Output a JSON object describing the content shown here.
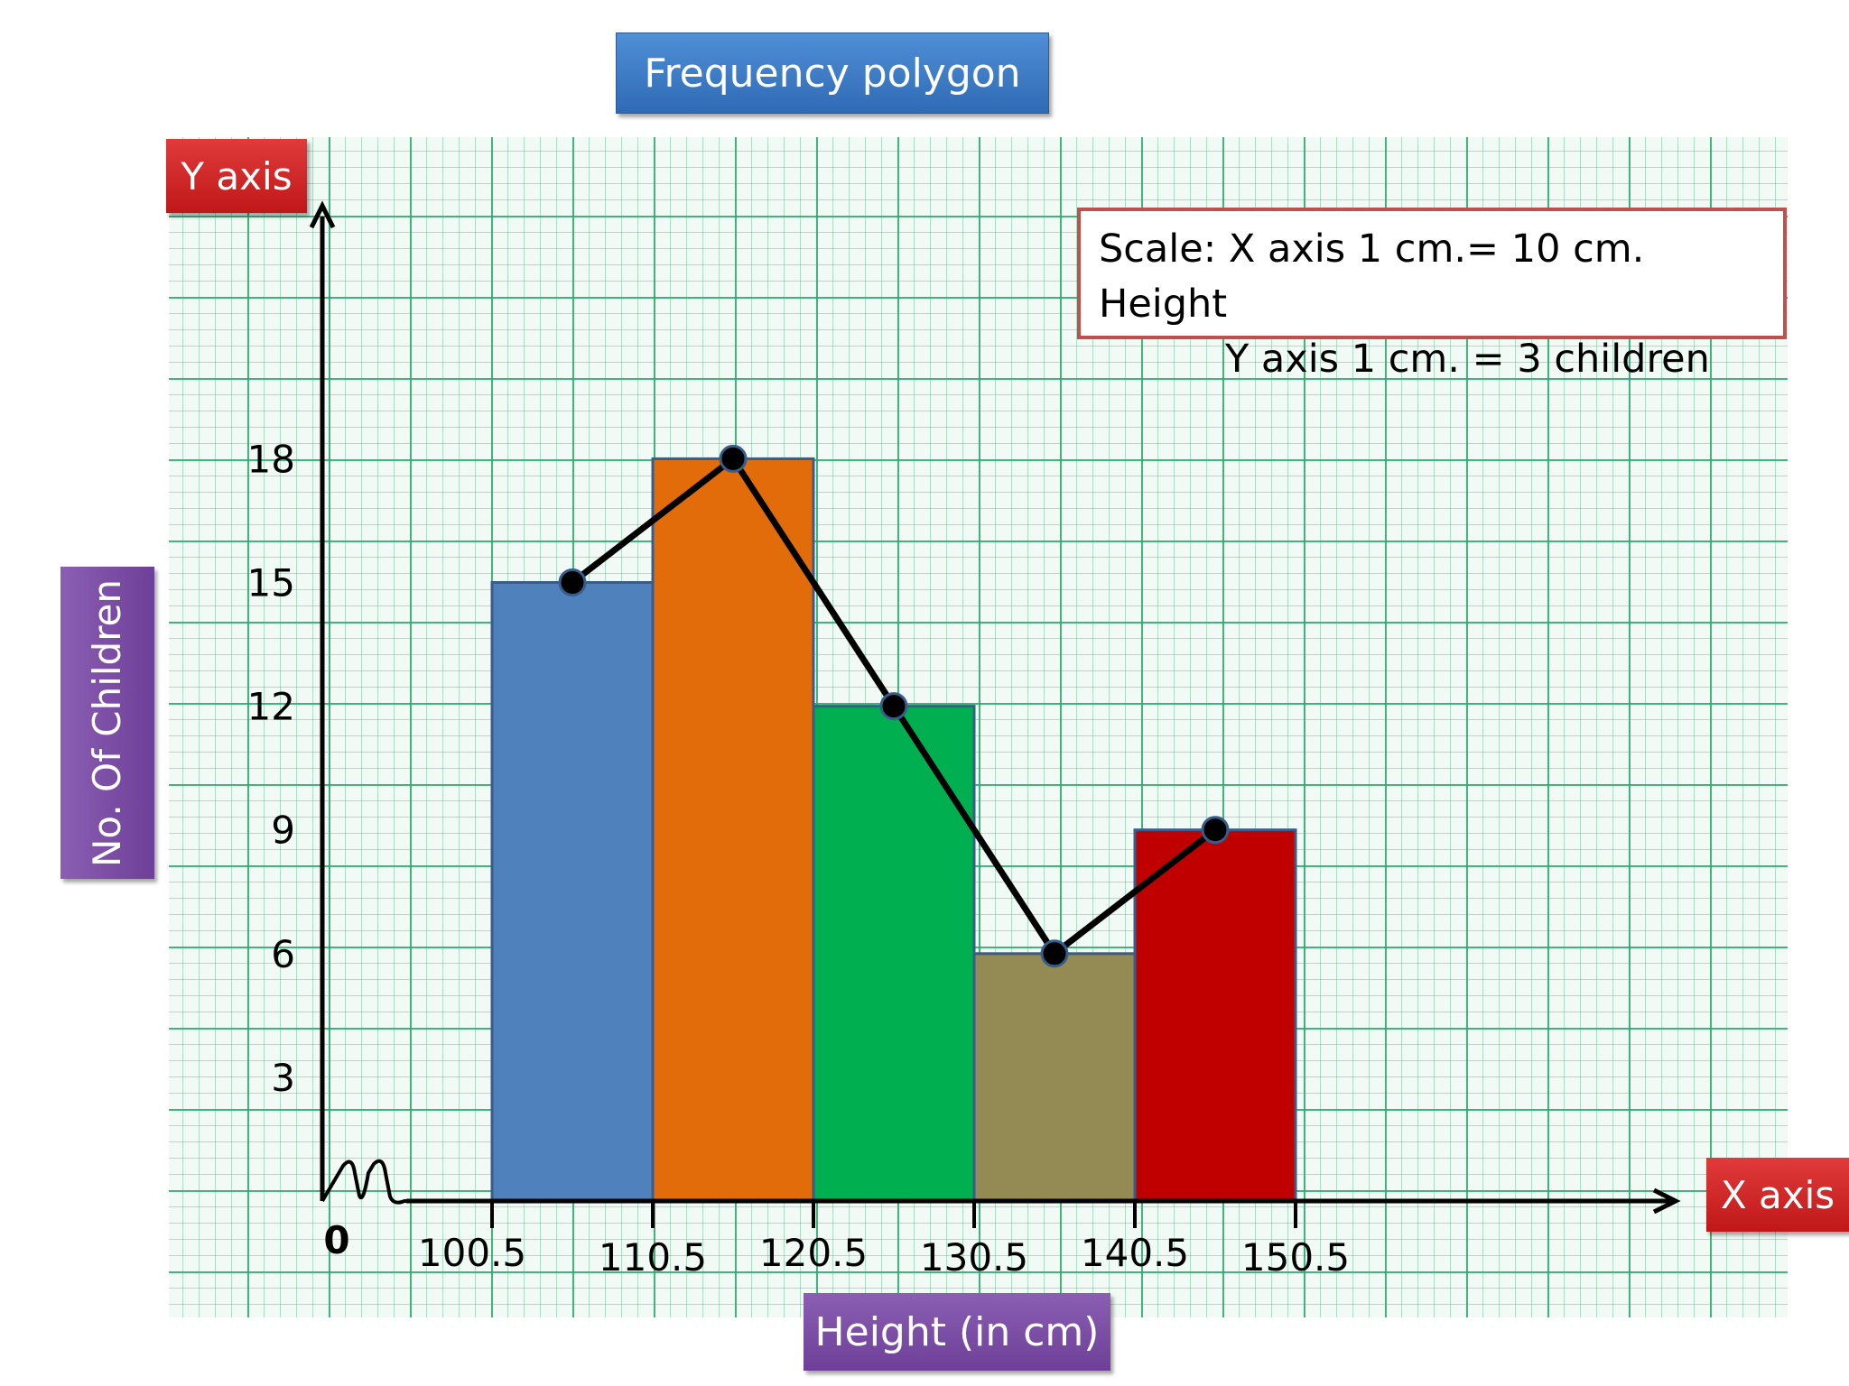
{
  "title": "Frequency polygon",
  "y_axis_tag": "Y axis",
  "x_axis_tag": "X axis",
  "scale": {
    "line1": "Scale: X axis 1 cm.= 10 cm. Height",
    "line2": "Y axis 1 cm. = 3 children"
  },
  "colors": {
    "bar1": "#4f81bd",
    "bar2": "#e36c0a",
    "bar3": "#00b050",
    "bar4": "#948a54",
    "bar5": "#c00000"
  },
  "chart_data": {
    "type": "bar",
    "title": "Frequency polygon",
    "xlabel": "Height (in cm)",
    "ylabel": "No. Of Children",
    "origin_label": "0",
    "x_ticks": [
      "100.5",
      "110.5",
      "120.5",
      "130.5",
      "140.5",
      "150.5"
    ],
    "y_ticks": [
      3,
      6,
      9,
      12,
      15,
      18
    ],
    "ylim": [
      0,
      27
    ],
    "axis_break": true,
    "bins": [
      {
        "from": 100.5,
        "to": 110.5,
        "value": 15
      },
      {
        "from": 110.5,
        "to": 120.5,
        "value": 18
      },
      {
        "from": 120.5,
        "to": 130.5,
        "value": 12
      },
      {
        "from": 130.5,
        "to": 140.5,
        "value": 6
      },
      {
        "from": 140.5,
        "to": 150.5,
        "value": 9
      }
    ],
    "polygon": {
      "x": [
        105.5,
        115.5,
        125.5,
        135.5,
        145.5
      ],
      "y": [
        15,
        18,
        12,
        6,
        9
      ]
    },
    "grid": true
  }
}
